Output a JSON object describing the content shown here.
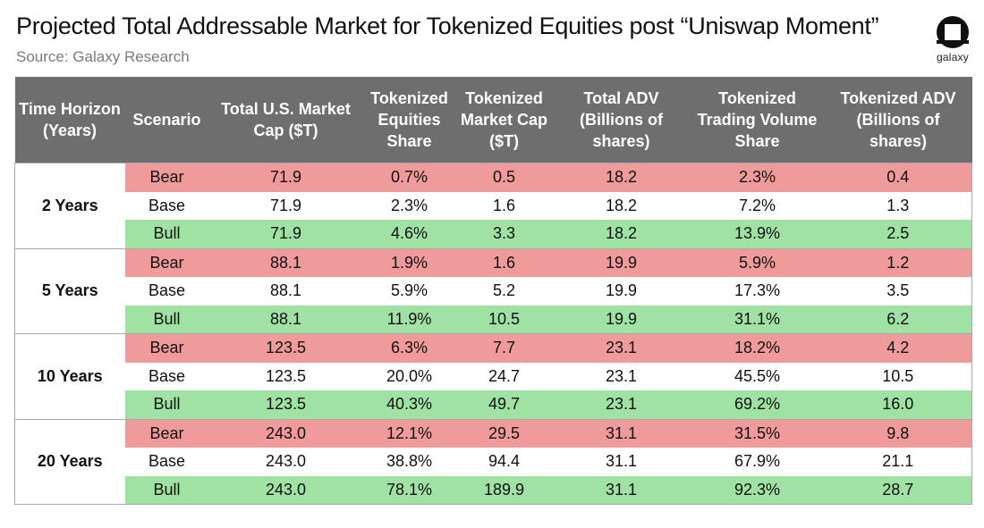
{
  "header": {
    "title": "Projected Total Addressable Market for Tokenized Equities post “Uniswap Moment”",
    "source": "Source: Galaxy Research",
    "logo_text": "galaxy"
  },
  "chart_data": {
    "type": "table",
    "title": "Projected Total Addressable Market for Tokenized Equities post “Uniswap Moment”",
    "columns": [
      "Time Horizon (Years)",
      "Scenario",
      "Total U.S. Market Cap ($T)",
      "Tokenized Equities Share",
      "Tokenized Market Cap ($T)",
      "Total ADV (Billions of shares)",
      "Tokenized Trading Volume Share",
      "Tokenized ADV (Billions of shares)"
    ],
    "groups": [
      {
        "horizon": "2 Years",
        "rows": [
          {
            "scenario": "Bear",
            "values": [
              "71.9",
              "0.7%",
              "0.5",
              "18.2",
              "2.3%",
              "0.4"
            ]
          },
          {
            "scenario": "Base",
            "values": [
              "71.9",
              "2.3%",
              "1.6",
              "18.2",
              "7.2%",
              "1.3"
            ]
          },
          {
            "scenario": "Bull",
            "values": [
              "71.9",
              "4.6%",
              "3.3",
              "18.2",
              "13.9%",
              "2.5"
            ]
          }
        ]
      },
      {
        "horizon": "5 Years",
        "rows": [
          {
            "scenario": "Bear",
            "values": [
              "88.1",
              "1.9%",
              "1.6",
              "19.9",
              "5.9%",
              "1.2"
            ]
          },
          {
            "scenario": "Base",
            "values": [
              "88.1",
              "5.9%",
              "5.2",
              "19.9",
              "17.3%",
              "3.5"
            ]
          },
          {
            "scenario": "Bull",
            "values": [
              "88.1",
              "11.9%",
              "10.5",
              "19.9",
              "31.1%",
              "6.2"
            ]
          }
        ]
      },
      {
        "horizon": "10 Years",
        "rows": [
          {
            "scenario": "Bear",
            "values": [
              "123.5",
              "6.3%",
              "7.7",
              "23.1",
              "18.2%",
              "4.2"
            ]
          },
          {
            "scenario": "Base",
            "values": [
              "123.5",
              "20.0%",
              "24.7",
              "23.1",
              "45.5%",
              "10.5"
            ]
          },
          {
            "scenario": "Bull",
            "values": [
              "123.5",
              "40.3%",
              "49.7",
              "23.1",
              "69.2%",
              "16.0"
            ]
          }
        ]
      },
      {
        "horizon": "20 Years",
        "rows": [
          {
            "scenario": "Bear",
            "values": [
              "243.0",
              "12.1%",
              "29.5",
              "31.1",
              "31.5%",
              "9.8"
            ]
          },
          {
            "scenario": "Base",
            "values": [
              "243.0",
              "38.8%",
              "94.4",
              "31.1",
              "67.9%",
              "21.1"
            ]
          },
          {
            "scenario": "Bull",
            "values": [
              "243.0",
              "78.1%",
              "189.9",
              "31.1",
              "92.3%",
              "28.7"
            ]
          }
        ]
      }
    ],
    "colors": {
      "header_bg": "#6e6e6e",
      "bear": "#f09b9b",
      "base": "#ffffff",
      "bull": "#9fe2a4"
    }
  }
}
